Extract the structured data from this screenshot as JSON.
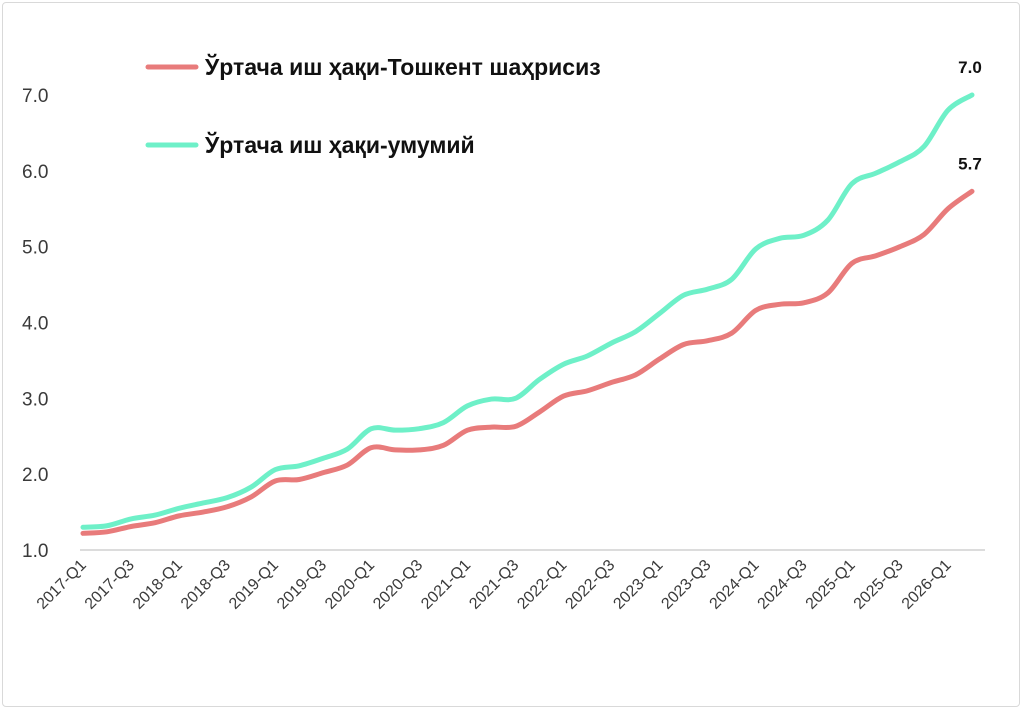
{
  "chart_data": {
    "type": "line",
    "title": "",
    "xlabel": "",
    "ylabel": "",
    "ylim": [
      1.0,
      7.0
    ],
    "y_ticks": [
      "1.0",
      "2.0",
      "3.0",
      "4.0",
      "5.0",
      "6.0",
      "7.0"
    ],
    "grid": false,
    "legend_position": "top-left",
    "x": [
      "2017-Q1",
      "2017-Q2",
      "2017-Q3",
      "2017-Q4",
      "2018-Q1",
      "2018-Q2",
      "2018-Q3",
      "2018-Q4",
      "2019-Q1",
      "2019-Q2",
      "2019-Q3",
      "2019-Q4",
      "2020-Q1",
      "2020-Q2",
      "2020-Q3",
      "2020-Q4",
      "2021-Q1",
      "2021-Q2",
      "2021-Q3",
      "2021-Q4",
      "2022-Q1",
      "2022-Q2",
      "2022-Q3",
      "2022-Q4",
      "2023-Q1",
      "2023-Q2",
      "2023-Q3",
      "2023-Q4",
      "2024-Q1",
      "2024-Q2",
      "2024-Q3",
      "2024-Q4",
      "2025-Q1",
      "2025-Q2",
      "2025-Q3",
      "2025-Q4",
      "2026-Q1",
      "2026-Q2"
    ],
    "x_tick_labels": [
      "2017-Q1",
      "2017-Q3",
      "2018-Q1",
      "2018-Q3",
      "2019-Q1",
      "2019-Q3",
      "2020-Q1",
      "2020-Q3",
      "2021-Q1",
      "2021-Q3",
      "2022-Q1",
      "2022-Q3",
      "2023-Q1",
      "2023-Q3",
      "2024-Q1",
      "2024-Q3",
      "2025-Q1",
      "2025-Q3",
      "2026-Q1"
    ],
    "series": [
      {
        "name": "Ўртача иш ҳақи-Тошкент шаҳрисиз",
        "color": "#e87b7b",
        "values": [
          1.22,
          1.24,
          1.31,
          1.36,
          1.45,
          1.5,
          1.57,
          1.7,
          1.91,
          1.93,
          2.02,
          2.12,
          2.35,
          2.32,
          2.32,
          2.38,
          2.58,
          2.62,
          2.63,
          2.82,
          3.03,
          3.1,
          3.21,
          3.31,
          3.52,
          3.71,
          3.76,
          3.86,
          4.16,
          4.24,
          4.26,
          4.39,
          4.78,
          4.88,
          5.0,
          5.16,
          5.5,
          5.73
        ],
        "end_label": "5.7"
      },
      {
        "name": "Ўртача иш ҳақи-умумий",
        "color": "#6ef0c8",
        "values": [
          1.3,
          1.32,
          1.41,
          1.46,
          1.55,
          1.62,
          1.69,
          1.83,
          2.06,
          2.11,
          2.21,
          2.33,
          2.6,
          2.58,
          2.6,
          2.68,
          2.9,
          2.99,
          3.0,
          3.25,
          3.45,
          3.56,
          3.73,
          3.88,
          4.12,
          4.36,
          4.44,
          4.57,
          4.97,
          5.11,
          5.15,
          5.35,
          5.83,
          5.97,
          6.12,
          6.32,
          6.8,
          7.0
        ],
        "end_label": "7.0"
      }
    ]
  }
}
